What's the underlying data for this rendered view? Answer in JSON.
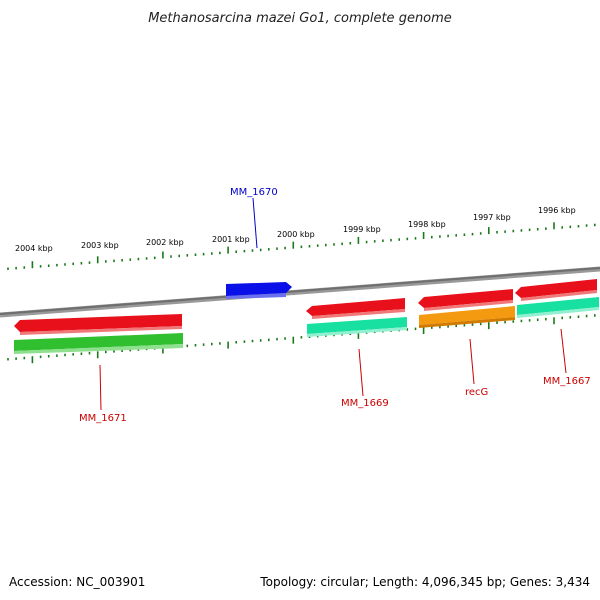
{
  "title": "Methanosarcina mazei Go1, complete genome",
  "footer": {
    "accession": "Accession: NC_003901",
    "summary": "Topology: circular; Length: 4,096,345 bp; Genes: 3,434"
  },
  "colors": {
    "backbone": "#7a7a7a",
    "tick": "#1a7a1a",
    "gene_red": "#e8101a",
    "gene_green": "#2fbf2f",
    "gene_teal": "#18e0a0",
    "gene_orange": "#f49a10",
    "gene_blue": "#0a10e8",
    "label_red": "#cc0000",
    "label_blue": "#0000cc"
  },
  "scale_labels": [
    "2004 kbp",
    "2003 kbp",
    "2002 kbp",
    "2001 kbp",
    "2000 kbp",
    "1999 kbp",
    "1998 kbp",
    "1997 kbp",
    "1996 kbp"
  ],
  "genes": [
    {
      "id": "g-blue",
      "strand": "forward",
      "color_key": "gene_blue",
      "label": "MM_1670"
    },
    {
      "id": "g-red-1671",
      "strand": "reverse",
      "color_key": "gene_red",
      "label": ""
    },
    {
      "id": "g-green-1671",
      "strand": "reverse",
      "color_key": "gene_green",
      "label": "MM_1671"
    },
    {
      "id": "g-red-1669",
      "strand": "reverse",
      "color_key": "gene_red",
      "label": ""
    },
    {
      "id": "g-teal-1669",
      "strand": "reverse",
      "color_key": "gene_teal",
      "label": "MM_1669"
    },
    {
      "id": "g-red-recg",
      "strand": "reverse",
      "color_key": "gene_red",
      "label": ""
    },
    {
      "id": "g-orange-recg",
      "strand": "reverse",
      "color_key": "gene_orange",
      "label": "recG"
    },
    {
      "id": "g-red-1667",
      "strand": "reverse",
      "color_key": "gene_red",
      "label": ""
    },
    {
      "id": "g-teal-1667",
      "strand": "reverse",
      "color_key": "gene_teal",
      "label": "MM_1667"
    }
  ]
}
